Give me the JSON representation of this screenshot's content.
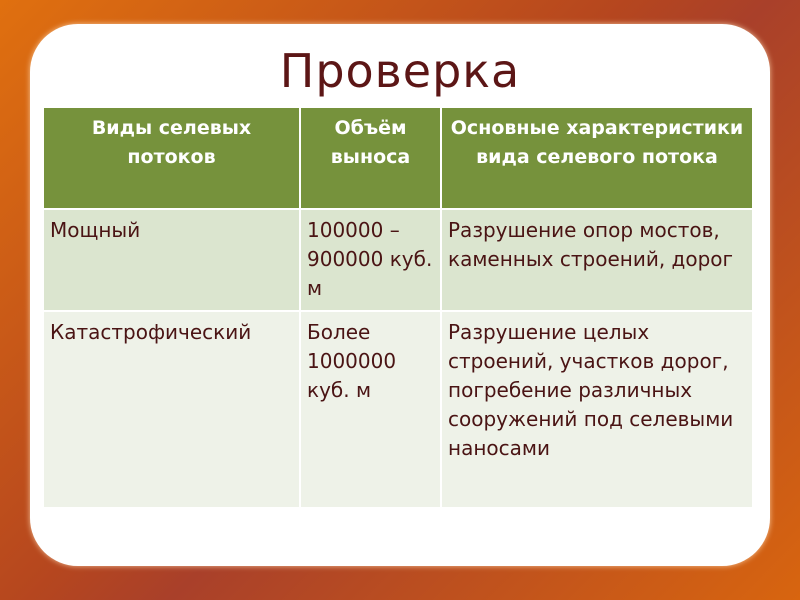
{
  "title": "Проверка",
  "table": {
    "headers": [
      "Виды селевых потоков",
      "Объём выноса",
      "Основные характеристики вида селевого потока"
    ],
    "rows": [
      [
        "Мощный",
        "100000 – 900000 куб. м",
        "Разрушение опор мостов, каменных строений, дорог"
      ],
      [
        "Катастрофический",
        "Более 1000000 куб. м",
        "Разрушение целых строений, участков дорог, погребение различных сооружений под селевыми наносами"
      ]
    ]
  },
  "colors": {
    "header": "#76923c",
    "row1": "#dbe5cf",
    "row2": "#eef2e8",
    "text": "#4a1414",
    "background": "#b5461f"
  }
}
